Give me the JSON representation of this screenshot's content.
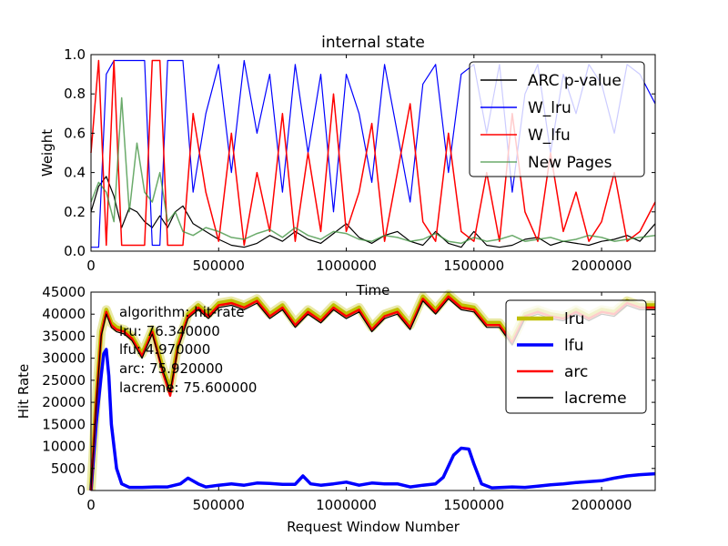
{
  "chart_data": [
    {
      "type": "line",
      "title": "internal state",
      "xlabel": "Time",
      "ylabel": "Weight",
      "xlim": [
        0,
        2210000
      ],
      "ylim": [
        0,
        1.0
      ],
      "x_ticks": [
        0,
        500000,
        1000000,
        1500000,
        2000000
      ],
      "x_tick_labels": [
        "0",
        "500000",
        "1000000",
        "1500000",
        "2000000"
      ],
      "y_ticks": [
        0,
        0.2,
        0.4,
        0.6,
        0.8,
        1.0
      ],
      "y_tick_labels": [
        "0.0",
        "0.2",
        "0.4",
        "0.6",
        "0.8",
        "1.0"
      ],
      "legend_position": "upper right",
      "series": [
        {
          "name": "ARC p-value",
          "color": "#000000",
          "x": [
            0,
            30000,
            60000,
            90000,
            120000,
            150000,
            180000,
            210000,
            240000,
            270000,
            300000,
            330000,
            360000,
            400000,
            450000,
            500000,
            550000,
            600000,
            650000,
            700000,
            750000,
            800000,
            850000,
            900000,
            950000,
            1000000,
            1050000,
            1100000,
            1150000,
            1200000,
            1250000,
            1300000,
            1350000,
            1400000,
            1450000,
            1500000,
            1550000,
            1600000,
            1650000,
            1700000,
            1750000,
            1800000,
            1850000,
            1900000,
            1950000,
            2000000,
            2050000,
            2100000,
            2150000,
            2210000
          ],
          "y": [
            0.2,
            0.33,
            0.38,
            0.28,
            0.12,
            0.22,
            0.2,
            0.15,
            0.12,
            0.18,
            0.12,
            0.2,
            0.23,
            0.14,
            0.1,
            0.06,
            0.03,
            0.02,
            0.04,
            0.08,
            0.05,
            0.1,
            0.06,
            0.04,
            0.09,
            0.14,
            0.07,
            0.04,
            0.08,
            0.1,
            0.05,
            0.03,
            0.1,
            0.04,
            0.02,
            0.1,
            0.03,
            0.02,
            0.03,
            0.06,
            0.07,
            0.03,
            0.05,
            0.04,
            0.03,
            0.05,
            0.06,
            0.08,
            0.05,
            0.14
          ]
        },
        {
          "name": "W_lru",
          "color": "#0000ff",
          "x": [
            0,
            30000,
            60000,
            90000,
            120000,
            150000,
            180000,
            210000,
            240000,
            270000,
            300000,
            330000,
            360000,
            400000,
            450000,
            500000,
            550000,
            600000,
            650000,
            700000,
            750000,
            800000,
            850000,
            900000,
            950000,
            1000000,
            1050000,
            1100000,
            1150000,
            1200000,
            1250000,
            1300000,
            1350000,
            1400000,
            1450000,
            1500000,
            1550000,
            1600000,
            1650000,
            1700000,
            1750000,
            1800000,
            1850000,
            1900000,
            1950000,
            2000000,
            2050000,
            2100000,
            2150000,
            2210000
          ],
          "y": [
            0.02,
            0.02,
            0.9,
            0.97,
            0.97,
            0.97,
            0.97,
            0.97,
            0.03,
            0.03,
            0.97,
            0.97,
            0.97,
            0.3,
            0.7,
            0.95,
            0.4,
            0.97,
            0.6,
            0.9,
            0.3,
            0.95,
            0.5,
            0.9,
            0.2,
            0.9,
            0.7,
            0.35,
            0.95,
            0.6,
            0.25,
            0.85,
            0.95,
            0.4,
            0.9,
            0.95,
            0.6,
            0.95,
            0.3,
            0.8,
            0.95,
            0.5,
            0.9,
            0.7,
            0.95,
            0.85,
            0.6,
            0.95,
            0.9,
            0.75
          ]
        },
        {
          "name": "W_lfu",
          "color": "#ff0000",
          "x": [
            0,
            30000,
            60000,
            90000,
            120000,
            150000,
            180000,
            210000,
            240000,
            270000,
            300000,
            330000,
            360000,
            400000,
            450000,
            500000,
            550000,
            600000,
            650000,
            700000,
            750000,
            800000,
            850000,
            900000,
            950000,
            1000000,
            1050000,
            1100000,
            1150000,
            1200000,
            1250000,
            1300000,
            1350000,
            1400000,
            1450000,
            1500000,
            1550000,
            1600000,
            1650000,
            1700000,
            1750000,
            1800000,
            1850000,
            1900000,
            1950000,
            2000000,
            2050000,
            2100000,
            2150000,
            2210000
          ],
          "y": [
            0.5,
            0.97,
            0.03,
            0.97,
            0.03,
            0.03,
            0.03,
            0.03,
            0.97,
            0.97,
            0.03,
            0.03,
            0.03,
            0.7,
            0.3,
            0.05,
            0.6,
            0.03,
            0.4,
            0.1,
            0.7,
            0.05,
            0.5,
            0.1,
            0.8,
            0.1,
            0.3,
            0.65,
            0.05,
            0.4,
            0.75,
            0.15,
            0.05,
            0.6,
            0.1,
            0.05,
            0.4,
            0.05,
            0.7,
            0.2,
            0.05,
            0.5,
            0.1,
            0.3,
            0.05,
            0.15,
            0.4,
            0.05,
            0.1,
            0.25
          ]
        },
        {
          "name": "New Pages",
          "color": "#3a8f3a",
          "x": [
            0,
            30000,
            60000,
            90000,
            120000,
            150000,
            180000,
            210000,
            240000,
            270000,
            300000,
            330000,
            360000,
            400000,
            450000,
            500000,
            550000,
            600000,
            650000,
            700000,
            750000,
            800000,
            850000,
            900000,
            950000,
            1000000,
            1050000,
            1100000,
            1150000,
            1200000,
            1250000,
            1300000,
            1350000,
            1400000,
            1450000,
            1500000,
            1550000,
            1600000,
            1650000,
            1700000,
            1750000,
            1800000,
            1850000,
            1900000,
            1950000,
            2000000,
            2050000,
            2100000,
            2150000,
            2210000
          ],
          "y": [
            0.25,
            0.35,
            0.3,
            0.15,
            0.78,
            0.2,
            0.55,
            0.3,
            0.25,
            0.4,
            0.15,
            0.2,
            0.1,
            0.08,
            0.12,
            0.1,
            0.07,
            0.06,
            0.09,
            0.11,
            0.07,
            0.12,
            0.08,
            0.06,
            0.1,
            0.09,
            0.06,
            0.05,
            0.08,
            0.07,
            0.05,
            0.06,
            0.09,
            0.05,
            0.04,
            0.07,
            0.05,
            0.06,
            0.08,
            0.05,
            0.06,
            0.07,
            0.05,
            0.06,
            0.08,
            0.07,
            0.05,
            0.06,
            0.07,
            0.08
          ]
        }
      ]
    },
    {
      "type": "line",
      "title": "",
      "xlabel": "Request Window Number",
      "ylabel": "Hit Rate",
      "xlim": [
        0,
        2210000
      ],
      "ylim": [
        0,
        45000
      ],
      "x_ticks": [
        0,
        500000,
        1000000,
        1500000,
        2000000
      ],
      "x_tick_labels": [
        "0",
        "500000",
        "1000000",
        "1500000",
        "2000000"
      ],
      "y_ticks": [
        0,
        5000,
        10000,
        15000,
        20000,
        25000,
        30000,
        35000,
        40000,
        45000
      ],
      "y_tick_labels": [
        "0",
        "5000",
        "10000",
        "15000",
        "20000",
        "25000",
        "30000",
        "35000",
        "40000",
        "45000"
      ],
      "legend_position": "upper right",
      "annotation": {
        "header": "algorithm:  hit-rate",
        "lines": [
          "lru:  76.340000",
          "lfu:  4.970000",
          "arc:  75.920000",
          "lacreme:  75.600000"
        ]
      },
      "series": [
        {
          "name": "lru",
          "color": "#bfbf00",
          "x": [
            0,
            20000,
            40000,
            60000,
            80000,
            100000,
            130000,
            160000,
            200000,
            240000,
            280000,
            310000,
            340000,
            380000,
            420000,
            460000,
            500000,
            550000,
            600000,
            650000,
            700000,
            750000,
            800000,
            850000,
            900000,
            950000,
            1000000,
            1050000,
            1100000,
            1150000,
            1200000,
            1250000,
            1300000,
            1350000,
            1400000,
            1450000,
            1500000,
            1550000,
            1600000,
            1650000,
            1700000,
            1750000,
            1800000,
            1850000,
            1900000,
            1950000,
            2000000,
            2050000,
            2100000,
            2150000,
            2210000
          ],
          "y": [
            0,
            20000,
            36000,
            41000,
            38000,
            37000,
            36500,
            35000,
            31000,
            36500,
            28000,
            23000,
            33000,
            40000,
            42000,
            40000,
            42500,
            43000,
            42000,
            43500,
            40000,
            42000,
            38000,
            41000,
            39000,
            42000,
            40000,
            41500,
            37000,
            40000,
            41000,
            37500,
            44000,
            41000,
            44500,
            42000,
            41500,
            38000,
            38000,
            34000,
            40000,
            41000,
            40000,
            39500,
            41000,
            39500,
            41000,
            40500,
            43000,
            42000,
            42000
          ]
        },
        {
          "name": "lfu",
          "color": "#0000ff",
          "x": [
            0,
            20000,
            40000,
            50000,
            60000,
            70000,
            80000,
            100000,
            120000,
            150000,
            200000,
            250000,
            300000,
            350000,
            380000,
            420000,
            450000,
            500000,
            550000,
            600000,
            650000,
            700000,
            750000,
            800000,
            830000,
            860000,
            900000,
            950000,
            1000000,
            1050000,
            1100000,
            1150000,
            1200000,
            1250000,
            1300000,
            1350000,
            1380000,
            1420000,
            1450000,
            1480000,
            1500000,
            1530000,
            1570000,
            1650000,
            1700000,
            1750000,
            1800000,
            1850000,
            1900000,
            1950000,
            2000000,
            2050000,
            2100000,
            2150000,
            2210000
          ],
          "y": [
            0,
            15000,
            26000,
            31000,
            32000,
            26000,
            15000,
            5000,
            1500,
            700,
            700,
            800,
            800,
            1500,
            2800,
            1500,
            800,
            1200,
            1500,
            1200,
            1700,
            1600,
            1400,
            1400,
            3300,
            1500,
            1200,
            1500,
            1900,
            1200,
            1700,
            1500,
            1500,
            800,
            1200,
            1500,
            3000,
            8000,
            9600,
            9400,
            6000,
            1500,
            600,
            800,
            700,
            1000,
            1300,
            1500,
            1800,
            2000,
            2200,
            2800,
            3300,
            3600,
            3800
          ]
        },
        {
          "name": "arc",
          "color": "#ff0000",
          "x": [
            0,
            20000,
            40000,
            60000,
            80000,
            100000,
            130000,
            160000,
            200000,
            240000,
            280000,
            310000,
            340000,
            380000,
            420000,
            460000,
            500000,
            550000,
            600000,
            650000,
            700000,
            750000,
            800000,
            850000,
            900000,
            950000,
            1000000,
            1050000,
            1100000,
            1150000,
            1200000,
            1250000,
            1300000,
            1350000,
            1400000,
            1450000,
            1500000,
            1550000,
            1600000,
            1650000,
            1700000,
            1750000,
            1800000,
            1850000,
            1900000,
            1950000,
            2000000,
            2050000,
            2100000,
            2150000,
            2210000
          ],
          "y": [
            0,
            19500,
            35500,
            40500,
            37500,
            36500,
            36000,
            34500,
            30500,
            36000,
            27000,
            21500,
            32500,
            39500,
            41500,
            39500,
            42000,
            42500,
            41500,
            43000,
            39500,
            41500,
            37500,
            40500,
            38500,
            41500,
            39500,
            41000,
            36500,
            39500,
            40500,
            37000,
            43500,
            40500,
            44000,
            41500,
            41000,
            37500,
            37500,
            33500,
            39500,
            40500,
            39500,
            39000,
            40500,
            39000,
            40500,
            40000,
            42500,
            41500,
            41500
          ]
        },
        {
          "name": "lacreme",
          "color": "#000000",
          "x": [
            0,
            20000,
            40000,
            60000,
            80000,
            100000,
            130000,
            160000,
            200000,
            240000,
            280000,
            310000,
            340000,
            380000,
            420000,
            460000,
            500000,
            550000,
            600000,
            650000,
            700000,
            750000,
            800000,
            850000,
            900000,
            950000,
            1000000,
            1050000,
            1100000,
            1150000,
            1200000,
            1250000,
            1300000,
            1350000,
            1400000,
            1450000,
            1500000,
            1550000,
            1600000,
            1650000,
            1700000,
            1750000,
            1800000,
            1850000,
            1900000,
            1950000,
            2000000,
            2050000,
            2100000,
            2150000,
            2210000
          ],
          "y": [
            0,
            19000,
            35000,
            40000,
            37000,
            36000,
            35500,
            34000,
            30000,
            35500,
            27500,
            22500,
            32000,
            39000,
            41000,
            39000,
            41500,
            42000,
            41000,
            42500,
            39000,
            41000,
            37000,
            40000,
            38000,
            41000,
            39000,
            40500,
            36000,
            39000,
            40000,
            36500,
            43000,
            40000,
            43500,
            41000,
            40500,
            37000,
            37000,
            33000,
            39000,
            40000,
            39000,
            38500,
            40000,
            38500,
            40000,
            39500,
            42000,
            41000,
            41000
          ]
        }
      ]
    }
  ]
}
